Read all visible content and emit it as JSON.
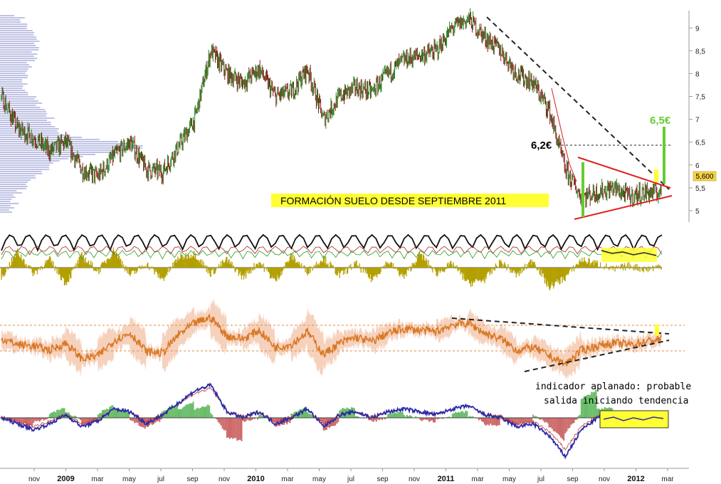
{
  "chart_data": [
    {
      "type": "line",
      "panel": "price",
      "subtype": "candlestick-with-volume-profile",
      "ylim": [
        4.75,
        9.3
      ],
      "yticks": [
        "9",
        "8,5",
        "8",
        "7,5",
        "7",
        "6,5",
        "6",
        "5,5",
        "5"
      ],
      "ytick_values": [
        9,
        8.5,
        8,
        7.5,
        7,
        6.5,
        6,
        5.5,
        5
      ],
      "series": [
        {
          "x": [
            "2008-09",
            "2008-10",
            "2008-11",
            "2008-12",
            "2009-01",
            "2009-02",
            "2009-03",
            "2009-04",
            "2009-05",
            "2009-06",
            "2009-07",
            "2009-08",
            "2009-09",
            "2009-10",
            "2009-11",
            "2009-12",
            "2010-01",
            "2010-02",
            "2010-03",
            "2010-04",
            "2010-05",
            "2010-06",
            "2010-07",
            "2010-08",
            "2010-09",
            "2010-10",
            "2010-11",
            "2010-12",
            "2011-01",
            "2011-02",
            "2011-03",
            "2011-04",
            "2011-05",
            "2011-06",
            "2011-07",
            "2011-08",
            "2011-09",
            "2011-10",
            "2011-11",
            "2011-12",
            "2012-01",
            "2012-02"
          ],
          "values": [
            7.5,
            6.8,
            6.6,
            6.3,
            6.5,
            5.9,
            5.75,
            6.2,
            6.5,
            5.9,
            5.85,
            6.4,
            7.0,
            8.5,
            8.0,
            7.8,
            8.1,
            7.5,
            7.6,
            8.1,
            7.0,
            7.5,
            7.7,
            7.6,
            8.0,
            8.3,
            8.4,
            8.5,
            9.0,
            9.2,
            8.8,
            8.5,
            8.0,
            7.8,
            7.2,
            5.9,
            5.3,
            5.4,
            5.5,
            5.3,
            5.4,
            5.4
          ]
        }
      ],
      "annotations": [
        "6,2€",
        "6,5€",
        "5,600",
        "FORMACIÓN SUELO DESDE SEPTIEMBRE 2011"
      ],
      "grid": false
    },
    {
      "type": "area",
      "panel": "oscillator-1",
      "series": [
        {
          "values": [
            -0.5,
            0.8,
            -0.3,
            0.4,
            -0.8,
            0.6,
            -0.2,
            0.9,
            -0.4,
            0.2,
            -0.6,
            0.5,
            0.7,
            -0.3,
            0.4,
            -0.5,
            0.3,
            -0.7,
            0.6,
            -0.2,
            0.5,
            -0.4,
            0.2,
            -0.6,
            0.3,
            -0.5,
            0.7,
            -0.3,
            0.2,
            -0.8,
            -0.6,
            0.3,
            -0.4,
            0.4,
            -1.0,
            -0.5,
            0.4,
            0.2,
            -0.1,
            0.1,
            -0.1,
            0.1
          ]
        }
      ]
    },
    {
      "type": "line",
      "panel": "oscillator-2",
      "series": [
        {
          "values": [
            52,
            48,
            47,
            44,
            49,
            38,
            40,
            51,
            56,
            43,
            42,
            55,
            63,
            67,
            54,
            52,
            58,
            46,
            48,
            57,
            41,
            49,
            53,
            50,
            56,
            59,
            58,
            57,
            62,
            63,
            56,
            52,
            44,
            46,
            40,
            34,
            44,
            47,
            49,
            48,
            50,
            52
          ]
        }
      ]
    },
    {
      "type": "line",
      "panel": "oscillator-3",
      "series": [
        {
          "values": [
            0.0,
            -0.2,
            -0.4,
            -0.2,
            0.1,
            -0.3,
            -0.1,
            0.3,
            0.2,
            -0.2,
            0.1,
            0.5,
            0.9,
            1.1,
            0.2,
            0.0,
            0.2,
            -0.2,
            0.0,
            0.3,
            -0.3,
            0.1,
            0.2,
            0.0,
            0.2,
            0.3,
            0.2,
            0.1,
            0.3,
            0.4,
            0.1,
            0.0,
            -0.3,
            -0.2,
            -0.6,
            -1.3,
            -0.4,
            0.0,
            0.1,
            0.0,
            0.05,
            0.1
          ]
        }
      ]
    },
    {
      "type": "line",
      "panel": "time-axis",
      "x_ticks": [
        {
          "label": "nov",
          "year": false
        },
        {
          "label": "2009",
          "year": true
        },
        {
          "label": "mar",
          "year": false
        },
        {
          "label": "may",
          "year": false
        },
        {
          "label": "jul",
          "year": false
        },
        {
          "label": "sep",
          "year": false
        },
        {
          "label": "nov",
          "year": false
        },
        {
          "label": "2010",
          "year": true
        },
        {
          "label": "mar",
          "year": false
        },
        {
          "label": "may",
          "year": false
        },
        {
          "label": "jul",
          "year": false
        },
        {
          "label": "sep",
          "year": false
        },
        {
          "label": "nov",
          "year": false
        },
        {
          "label": "2011",
          "year": true
        },
        {
          "label": "mar",
          "year": false
        },
        {
          "label": "may",
          "year": false
        },
        {
          "label": "jul",
          "year": false
        },
        {
          "label": "sep",
          "year": false
        },
        {
          "label": "nov",
          "year": false
        },
        {
          "label": "2012",
          "year": true
        },
        {
          "label": "mar",
          "year": false
        }
      ],
      "annotations": [
        "indicador aplanado: probable",
        "salida iniciando tendencia"
      ]
    }
  ],
  "colors": {
    "bull_candle": "#1f8a1f",
    "bear_candle": "#8b1a1a",
    "volume_profile": "#7f86c9",
    "trendline_dashed": "#222222",
    "triangle": "#e02020",
    "highlight": "#ffff33",
    "target_bar": "#66cc33",
    "osc1_fill": "#b3a000",
    "osc2_line": "#d97722",
    "osc2_band": "#f4c9b0",
    "osc3_line": "#2a2aa8",
    "osc3_hist_pos": "#66bb66",
    "osc3_hist_neg": "#cc6666"
  }
}
